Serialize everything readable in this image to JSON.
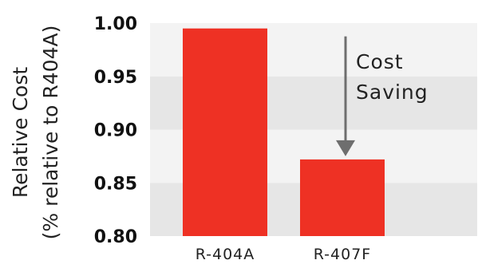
{
  "chart_data": {
    "type": "bar",
    "categories": [
      "R-404A",
      "R-407F"
    ],
    "values": [
      0.995,
      0.872
    ],
    "ylabel_lines": [
      "Relative Cost",
      "(% relative to R404A)"
    ],
    "xlabel": "",
    "ylim": [
      0.8,
      1.0
    ],
    "yticks": [
      "0.80",
      "0.85",
      "0.90",
      "0.95",
      "1.00"
    ],
    "ytick_values": [
      0.8,
      0.85,
      0.9,
      0.95,
      1.0
    ],
    "bar_color": "#ee3124",
    "band_color": "#e6e6e6",
    "arrow_color": "#6e6e6e",
    "annotation_lines": [
      "Cost",
      "Saving"
    ],
    "grid": "alternating horizontal bands",
    "legend": "none"
  }
}
